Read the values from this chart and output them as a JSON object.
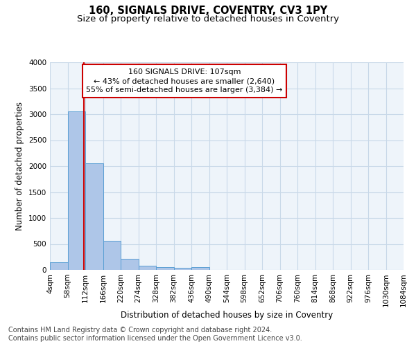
{
  "title_line1": "160, SIGNALS DRIVE, COVENTRY, CV3 1PY",
  "title_line2": "Size of property relative to detached houses in Coventry",
  "xlabel": "Distribution of detached houses by size in Coventry",
  "ylabel": "Number of detached properties",
  "footer_line1": "Contains HM Land Registry data © Crown copyright and database right 2024.",
  "footer_line2": "Contains public sector information licensed under the Open Government Licence v3.0.",
  "annotation_line1": "160 SIGNALS DRIVE: 107sqm",
  "annotation_line2": "← 43% of detached houses are smaller (2,640)",
  "annotation_line3": "55% of semi-detached houses are larger (3,384) →",
  "bin_edges": [
    4,
    58,
    112,
    166,
    220,
    274,
    328,
    382,
    436,
    490,
    544,
    598,
    652,
    706,
    760,
    814,
    868,
    922,
    976,
    1030,
    1084
  ],
  "bar_heights": [
    150,
    3050,
    2060,
    560,
    215,
    75,
    50,
    35,
    60,
    0,
    0,
    0,
    0,
    0,
    0,
    0,
    0,
    0,
    0,
    0
  ],
  "bar_color": "#aec6e8",
  "bar_edge_color": "#5a9fd4",
  "vline_x": 107,
  "vline_color": "#cc0000",
  "annotation_box_color": "#cc0000",
  "ylim": [
    0,
    4000
  ],
  "yticks": [
    0,
    500,
    1000,
    1500,
    2000,
    2500,
    3000,
    3500,
    4000
  ],
  "grid_color": "#c8d8e8",
  "bg_color": "#eef4fa",
  "title_fontsize": 10.5,
  "subtitle_fontsize": 9.5,
  "axis_label_fontsize": 8.5,
  "tick_fontsize": 7.5,
  "annotation_fontsize": 8,
  "footer_fontsize": 7
}
